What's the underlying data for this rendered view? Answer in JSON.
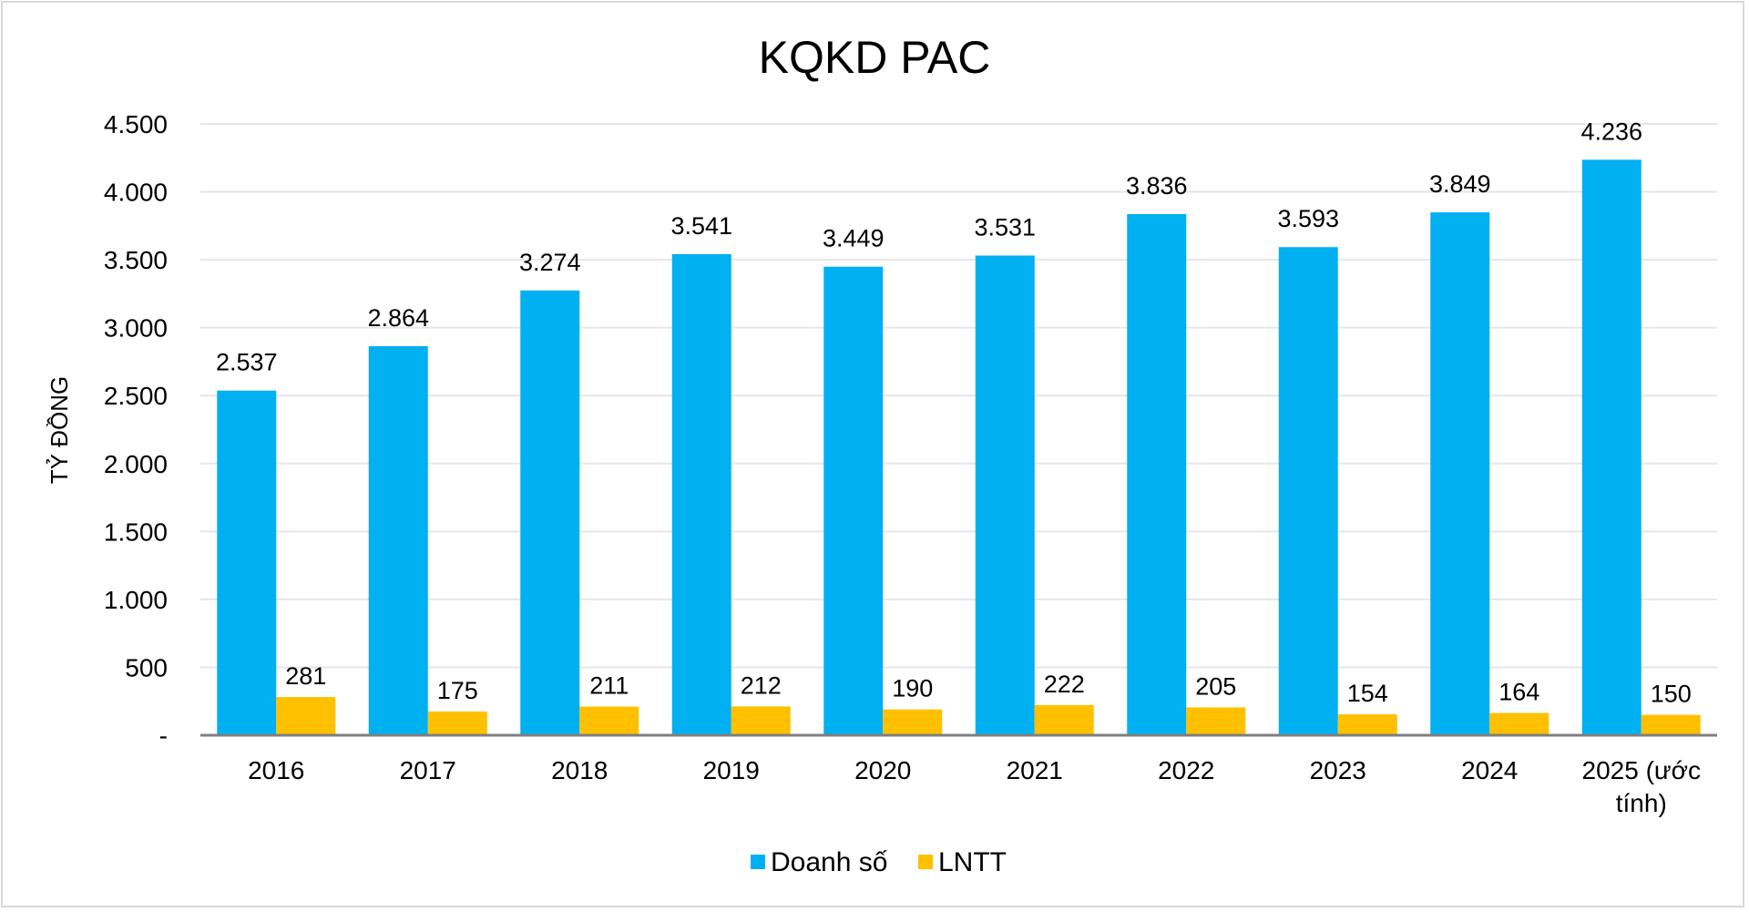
{
  "chart_data": {
    "type": "bar",
    "title": "KQKD PAC",
    "xlabel": "",
    "ylabel": "TỶ ĐỒNG",
    "ylim": [
      0,
      4500
    ],
    "y_ticks": [
      0,
      500,
      1000,
      1500,
      2000,
      2500,
      3000,
      3500,
      4000,
      4500
    ],
    "y_tick_labels": [
      "-",
      "500",
      "1.000",
      "1.500",
      "2.000",
      "2.500",
      "3.000",
      "3.500",
      "4.000",
      "4.500"
    ],
    "grid": true,
    "legend_position": "bottom-center",
    "categories": [
      [
        "2016"
      ],
      [
        "2017"
      ],
      [
        "2018"
      ],
      [
        "2019"
      ],
      [
        "2020"
      ],
      [
        "2021"
      ],
      [
        "2022"
      ],
      [
        "2023"
      ],
      [
        "2024"
      ],
      [
        "2025 (ước",
        "tính)"
      ]
    ],
    "series": [
      {
        "name": "Doanh số",
        "color": "#00b0f0",
        "values": [
          2537,
          2864,
          3274,
          3541,
          3449,
          3531,
          3836,
          3593,
          3849,
          4236
        ],
        "labels": [
          "2.537",
          "2.864",
          "3.274",
          "3.541",
          "3.449",
          "3.531",
          "3.836",
          "3.593",
          "3.849",
          "4.236"
        ]
      },
      {
        "name": "LNTT",
        "color": "#ffc000",
        "values": [
          281,
          175,
          211,
          212,
          190,
          222,
          205,
          154,
          164,
          150
        ],
        "labels": [
          "281",
          "175",
          "211",
          "212",
          "190",
          "222",
          "205",
          "154",
          "164",
          "150"
        ]
      }
    ]
  }
}
